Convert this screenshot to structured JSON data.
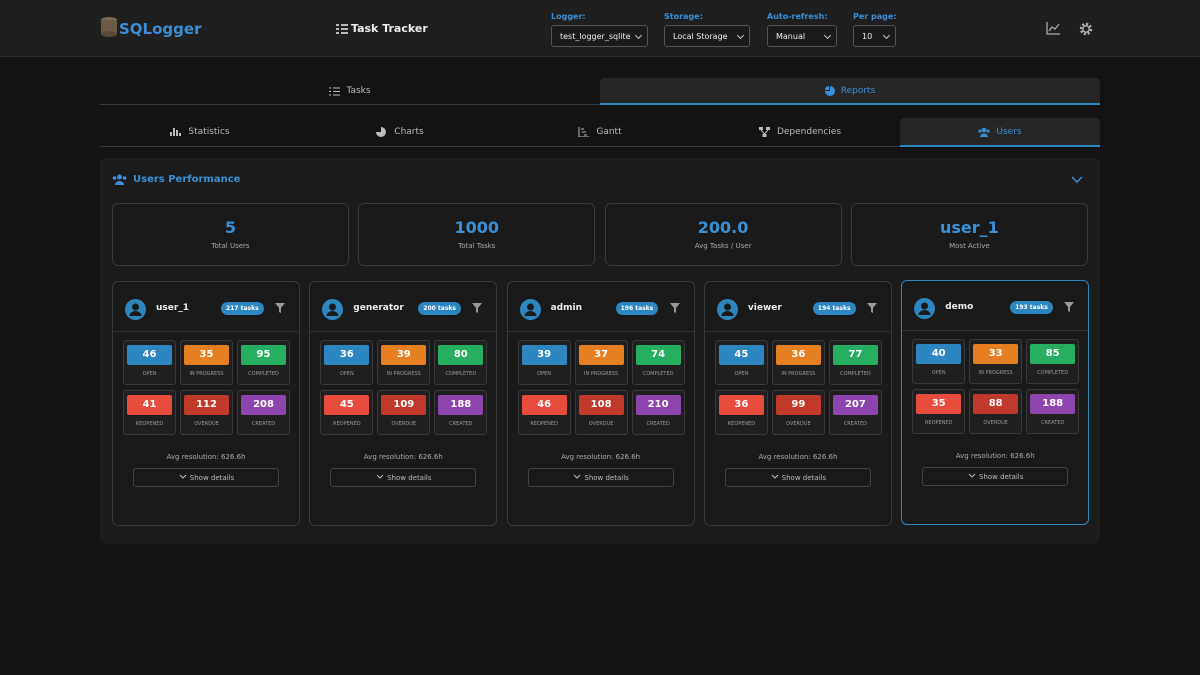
{
  "header": {
    "logo": "SQLogger",
    "app_title": "Task Tracker",
    "controls": [
      {
        "label": "Logger:",
        "value": "test_logger_sqlite"
      },
      {
        "label": "Storage:",
        "value": "Local Storage"
      },
      {
        "label": "Auto-refresh:",
        "value": "Manual"
      },
      {
        "label": "Per page:",
        "value": "10"
      }
    ]
  },
  "main_tabs": [
    "Tasks",
    "Reports"
  ],
  "sub_tabs": [
    "Statistics",
    "Charts",
    "Gantt",
    "Dependencies",
    "Users"
  ],
  "panel": {
    "title": "Users Performance",
    "summary": [
      {
        "value": "5",
        "label": "Total Users"
      },
      {
        "value": "1000",
        "label": "Total Tasks"
      },
      {
        "value": "200.0",
        "label": "Avg Tasks / User"
      },
      {
        "value": "user_1",
        "label": "Most Active"
      }
    ],
    "status_labels": [
      "OPEN",
      "IN PROGRESS",
      "COMPLETED",
      "REOPENED",
      "OVERDUE",
      "CREATED"
    ],
    "show_details": "Show details",
    "users": [
      {
        "name": "user_1",
        "tasks": "217 tasks",
        "counts": [
          46,
          35,
          95,
          41,
          112,
          208
        ],
        "avg_resolution": "Avg resolution: 626.6h"
      },
      {
        "name": "generator",
        "tasks": "200 tasks",
        "counts": [
          36,
          39,
          80,
          45,
          109,
          188
        ],
        "avg_resolution": "Avg resolution: 626.6h"
      },
      {
        "name": "admin",
        "tasks": "196 tasks",
        "counts": [
          39,
          37,
          74,
          46,
          108,
          210
        ],
        "avg_resolution": "Avg resolution: 626.6h"
      },
      {
        "name": "viewer",
        "tasks": "194 tasks",
        "counts": [
          45,
          36,
          77,
          36,
          99,
          207
        ],
        "avg_resolution": "Avg resolution: 626.6h"
      },
      {
        "name": "demo",
        "tasks": "193 tasks",
        "counts": [
          40,
          33,
          85,
          35,
          88,
          188
        ],
        "avg_resolution": "Avg resolution: 626.6h"
      }
    ]
  }
}
